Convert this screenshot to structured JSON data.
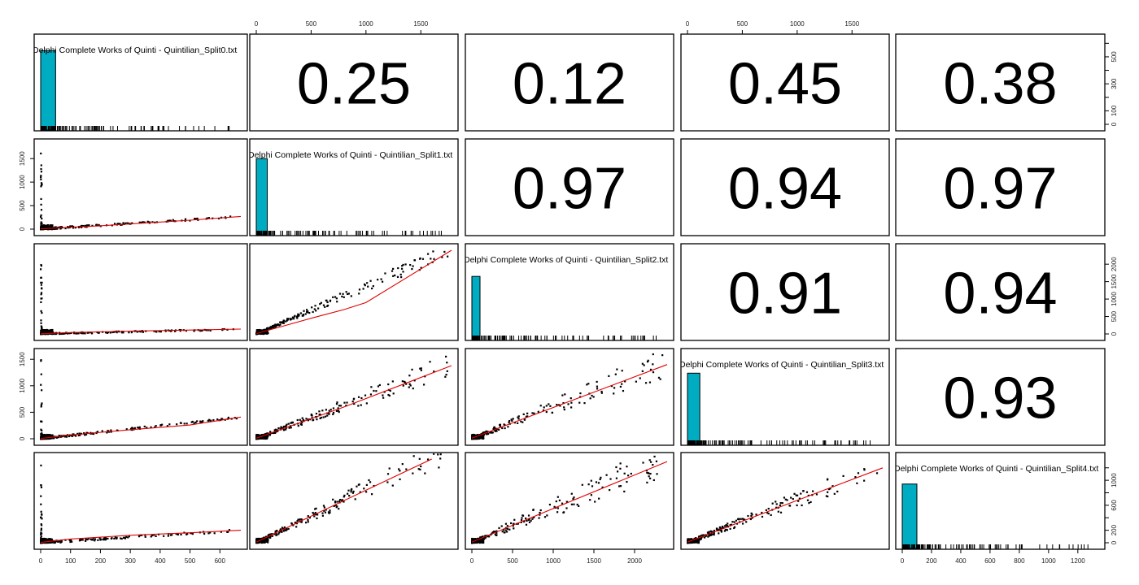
{
  "chart_data": {
    "type": "scatter",
    "title": "",
    "layout": "pairs-matrix 5x5 (lower: scatter + loess, diagonal: histogram + rug, upper: correlation)",
    "variables": [
      "Delphi Complete Works of Quinti - Quintilian_Split0.txt",
      "Delphi Complete Works of Quinti - Quintilian_Split1.txt",
      "Delphi Complete Works of Quinti - Quintilian_Split2.txt",
      "Delphi Complete Works of Quinti - Quintilian_Split3.txt",
      "Delphi Complete Works of Quinti - Quintilian_Split4.txt"
    ],
    "variable_ranges": [
      [
        0,
        670
      ],
      [
        0,
        1780
      ],
      [
        0,
        2400
      ],
      [
        0,
        1580
      ],
      [
        0,
        1340
      ]
    ],
    "correlations": [
      {
        "row": 0,
        "col": 1,
        "value": "0.25"
      },
      {
        "row": 0,
        "col": 2,
        "value": "0.12"
      },
      {
        "row": 0,
        "col": 3,
        "value": "0.45"
      },
      {
        "row": 0,
        "col": 4,
        "value": "0.38"
      },
      {
        "row": 1,
        "col": 2,
        "value": "0.97"
      },
      {
        "row": 1,
        "col": 3,
        "value": "0.94"
      },
      {
        "row": 1,
        "col": 4,
        "value": "0.97"
      },
      {
        "row": 2,
        "col": 3,
        "value": "0.91"
      },
      {
        "row": 2,
        "col": 4,
        "value": "0.94"
      },
      {
        "row": 3,
        "col": 4,
        "value": "0.93"
      }
    ],
    "top_axis": [
      {
        "col": 1,
        "ticks": [
          "0",
          "500",
          "1000",
          "1500"
        ],
        "values": [
          0,
          500,
          1000,
          1500
        ]
      },
      {
        "col": 3,
        "ticks": [
          "0",
          "500",
          "1000",
          "1500"
        ],
        "values": [
          0,
          500,
          1000,
          1500
        ]
      }
    ],
    "bottom_axis": [
      {
        "col": 0,
        "ticks": [
          "0",
          "100",
          "200",
          "300",
          "400",
          "500",
          "600"
        ],
        "values": [
          0,
          100,
          200,
          300,
          400,
          500,
          600
        ]
      },
      {
        "col": 2,
        "ticks": [
          "0",
          "500",
          "1000",
          "1500",
          "2000"
        ],
        "values": [
          0,
          500,
          1000,
          1500,
          2000
        ]
      },
      {
        "col": 4,
        "ticks": [
          "0",
          "200",
          "400",
          "600",
          "800",
          "1000",
          "1200"
        ],
        "values": [
          0,
          200,
          400,
          600,
          800,
          1000,
          1200
        ]
      }
    ],
    "left_axis": [
      {
        "row": 1,
        "ticks": [
          "0",
          "500",
          "1000",
          "1500"
        ],
        "values": [
          0,
          500,
          1000,
          1500
        ]
      },
      {
        "row": 3,
        "ticks": [
          "0",
          "500",
          "1000",
          "1500"
        ],
        "values": [
          0,
          500,
          1000,
          1500
        ]
      }
    ],
    "right_axis": [
      {
        "row": 0,
        "ticks": [
          "0",
          "100",
          "300",
          "500"
        ],
        "values": [
          0,
          100,
          300,
          500
        ],
        "minor": [
          200,
          400,
          600
        ],
        "range": [
          0,
          620
        ]
      },
      {
        "row": 2,
        "ticks": [
          "0",
          "500",
          "1000",
          "1500",
          "2000"
        ],
        "values": [
          0,
          500,
          1000,
          1500,
          2000
        ],
        "range": [
          0,
          2400
        ]
      },
      {
        "row": 4,
        "ticks": [
          "0",
          "200",
          "600",
          "1000"
        ],
        "values": [
          0,
          200,
          600,
          1000
        ],
        "minor": [
          400,
          800,
          1200
        ],
        "range": [
          0,
          1340
        ]
      }
    ],
    "histograms": [
      {
        "var": 0,
        "bin_width": 50,
        "counts": [
          545
        ],
        "ylim": [
          0,
          620
        ]
      },
      {
        "var": 1,
        "bin_width": 100,
        "counts": [
          1180
        ],
        "ylim": [
          0,
          1400
        ]
      },
      {
        "var": 2,
        "bin_width": 100,
        "counts": [
          1650
        ],
        "ylim": [
          0,
          2400
        ]
      },
      {
        "var": 3,
        "bin_width": 100,
        "counts": [
          1050
        ],
        "ylim": [
          0,
          1340
        ]
      },
      {
        "var": 4,
        "bin_width": 100,
        "counts": [
          940
        ],
        "ylim": [
          0,
          1340
        ]
      }
    ],
    "loess_fits": {
      "1_0": [
        [
          0,
          5
        ],
        [
          100,
          40
        ],
        [
          200,
          70
        ],
        [
          300,
          110
        ],
        [
          400,
          150
        ],
        [
          500,
          190
        ],
        [
          670,
          270
        ]
      ],
      "2_0": [
        [
          0,
          5
        ],
        [
          100,
          40
        ],
        [
          300,
          80
        ],
        [
          670,
          140
        ]
      ],
      "3_0": [
        [
          0,
          5
        ],
        [
          100,
          70
        ],
        [
          300,
          170
        ],
        [
          500,
          260
        ],
        [
          670,
          410
        ]
      ],
      "4_0": [
        [
          0,
          5
        ],
        [
          100,
          60
        ],
        [
          300,
          120
        ],
        [
          500,
          160
        ],
        [
          670,
          200
        ]
      ],
      "2_1": [
        [
          0,
          10
        ],
        [
          500,
          450
        ],
        [
          800,
          700
        ],
        [
          1000,
          900
        ],
        [
          1780,
          2400
        ]
      ],
      "3_1": [
        [
          0,
          10
        ],
        [
          800,
          600
        ],
        [
          1780,
          1380
        ]
      ],
      "4_1": [
        [
          0,
          10
        ],
        [
          1600,
          1340
        ]
      ],
      "3_2": [
        [
          0,
          10
        ],
        [
          2400,
          1400
        ]
      ],
      "4_2": [
        [
          0,
          10
        ],
        [
          2400,
          1300
        ]
      ],
      "4_3": [
        [
          0,
          10
        ],
        [
          1580,
          1200
        ]
      ]
    },
    "point_color": "#000000",
    "fit_color": "#e00000",
    "hist_color": "#00acc1",
    "grid": false,
    "legend": null
  }
}
